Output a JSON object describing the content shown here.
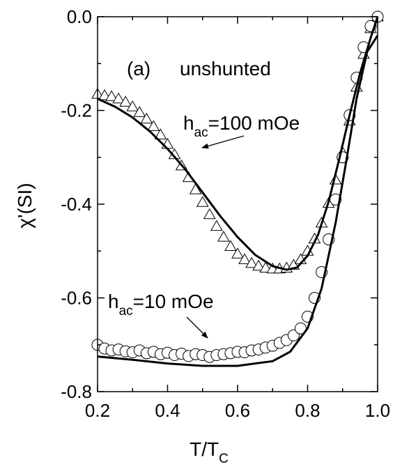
{
  "chart_data": {
    "type": "scatter",
    "xlabel": {
      "main": "T/T",
      "sub": "C"
    },
    "ylabel": "χ'(SI)",
    "xlim": [
      0.2,
      1.0
    ],
    "ylim": [
      -0.8,
      0.0
    ],
    "xticks": [
      0.2,
      0.4,
      0.6,
      0.8,
      1.0
    ],
    "xtick_labels": [
      "0.2",
      "0.4",
      "0.6",
      "0.8",
      "1.0"
    ],
    "yticks": [
      0.0,
      -0.2,
      -0.4,
      -0.6,
      -0.8
    ],
    "ytick_labels": [
      "0.0",
      "-0.2",
      "-0.4",
      "-0.6",
      "-0.8"
    ],
    "grid": false,
    "annotations": {
      "panel_label": "(a)",
      "condition": "unshunted",
      "h100": {
        "main": "h",
        "sub": "ac",
        "rest": "=100 mOe"
      },
      "h10": {
        "main": "h",
        "sub": "ac",
        "rest": "=10 mOe"
      }
    },
    "series": [
      {
        "marker": "triangle",
        "points": [
          [
            0.2,
            -0.165
          ],
          [
            0.22,
            -0.168
          ],
          [
            0.24,
            -0.17
          ],
          [
            0.26,
            -0.175
          ],
          [
            0.28,
            -0.182
          ],
          [
            0.3,
            -0.192
          ],
          [
            0.32,
            -0.204
          ],
          [
            0.34,
            -0.218
          ],
          [
            0.36,
            -0.234
          ],
          [
            0.38,
            -0.252
          ],
          [
            0.4,
            -0.272
          ],
          [
            0.42,
            -0.294
          ],
          [
            0.44,
            -0.318
          ],
          [
            0.46,
            -0.343
          ],
          [
            0.48,
            -0.369
          ],
          [
            0.5,
            -0.396
          ],
          [
            0.52,
            -0.422
          ],
          [
            0.54,
            -0.447
          ],
          [
            0.56,
            -0.47
          ],
          [
            0.58,
            -0.49
          ],
          [
            0.6,
            -0.506
          ],
          [
            0.62,
            -0.518
          ],
          [
            0.64,
            -0.526
          ],
          [
            0.66,
            -0.532
          ],
          [
            0.68,
            -0.536
          ],
          [
            0.7,
            -0.538
          ],
          [
            0.72,
            -0.538
          ],
          [
            0.74,
            -0.536
          ],
          [
            0.76,
            -0.53
          ],
          [
            0.78,
            -0.518
          ],
          [
            0.8,
            -0.5
          ],
          [
            0.82,
            -0.474
          ],
          [
            0.84,
            -0.44
          ],
          [
            0.86,
            -0.398
          ],
          [
            0.88,
            -0.348
          ],
          [
            0.9,
            -0.29
          ],
          [
            0.92,
            -0.222
          ],
          [
            0.94,
            -0.15
          ],
          [
            0.96,
            -0.08
          ],
          [
            0.98,
            -0.025
          ],
          [
            1.0,
            0.0
          ]
        ]
      },
      {
        "marker": "circle",
        "points": [
          [
            0.2,
            -0.7
          ],
          [
            0.22,
            -0.708
          ],
          [
            0.24,
            -0.712
          ],
          [
            0.26,
            -0.71
          ],
          [
            0.28,
            -0.714
          ],
          [
            0.3,
            -0.716
          ],
          [
            0.32,
            -0.712
          ],
          [
            0.34,
            -0.718
          ],
          [
            0.36,
            -0.715
          ],
          [
            0.38,
            -0.72
          ],
          [
            0.4,
            -0.717
          ],
          [
            0.42,
            -0.722
          ],
          [
            0.44,
            -0.719
          ],
          [
            0.46,
            -0.724
          ],
          [
            0.48,
            -0.72
          ],
          [
            0.5,
            -0.722
          ],
          [
            0.52,
            -0.726
          ],
          [
            0.54,
            -0.722
          ],
          [
            0.56,
            -0.72
          ],
          [
            0.58,
            -0.718
          ],
          [
            0.6,
            -0.715
          ],
          [
            0.62,
            -0.716
          ],
          [
            0.64,
            -0.712
          ],
          [
            0.66,
            -0.71
          ],
          [
            0.68,
            -0.706
          ],
          [
            0.7,
            -0.702
          ],
          [
            0.72,
            -0.696
          ],
          [
            0.74,
            -0.69
          ],
          [
            0.76,
            -0.68
          ],
          [
            0.78,
            -0.665
          ],
          [
            0.8,
            -0.64
          ],
          [
            0.82,
            -0.6
          ],
          [
            0.84,
            -0.545
          ],
          [
            0.86,
            -0.475
          ],
          [
            0.88,
            -0.39
          ],
          [
            0.9,
            -0.3
          ],
          [
            0.92,
            -0.21
          ],
          [
            0.94,
            -0.13
          ],
          [
            0.96,
            -0.065
          ],
          [
            0.98,
            -0.02
          ],
          [
            1.0,
            0.0
          ]
        ]
      }
    ],
    "fits": [
      {
        "points": [
          [
            0.2,
            -0.175
          ],
          [
            0.25,
            -0.192
          ],
          [
            0.3,
            -0.215
          ],
          [
            0.35,
            -0.245
          ],
          [
            0.4,
            -0.282
          ],
          [
            0.45,
            -0.325
          ],
          [
            0.5,
            -0.375
          ],
          [
            0.55,
            -0.425
          ],
          [
            0.6,
            -0.47
          ],
          [
            0.65,
            -0.508
          ],
          [
            0.7,
            -0.532
          ],
          [
            0.74,
            -0.54
          ],
          [
            0.77,
            -0.535
          ],
          [
            0.8,
            -0.51
          ],
          [
            0.83,
            -0.465
          ],
          [
            0.86,
            -0.395
          ],
          [
            0.89,
            -0.305
          ],
          [
            0.92,
            -0.21
          ],
          [
            0.95,
            -0.12
          ],
          [
            0.98,
            -0.045
          ],
          [
            1.0,
            0.0
          ]
        ]
      },
      {
        "points": [
          [
            0.2,
            -0.725
          ],
          [
            0.3,
            -0.732
          ],
          [
            0.4,
            -0.74
          ],
          [
            0.5,
            -0.745
          ],
          [
            0.6,
            -0.745
          ],
          [
            0.7,
            -0.735
          ],
          [
            0.75,
            -0.715
          ],
          [
            0.8,
            -0.665
          ],
          [
            0.84,
            -0.58
          ],
          [
            0.88,
            -0.44
          ],
          [
            0.91,
            -0.31
          ],
          [
            0.94,
            -0.175
          ],
          [
            0.97,
            -0.075
          ],
          [
            1.0,
            -0.04
          ]
        ]
      }
    ]
  }
}
